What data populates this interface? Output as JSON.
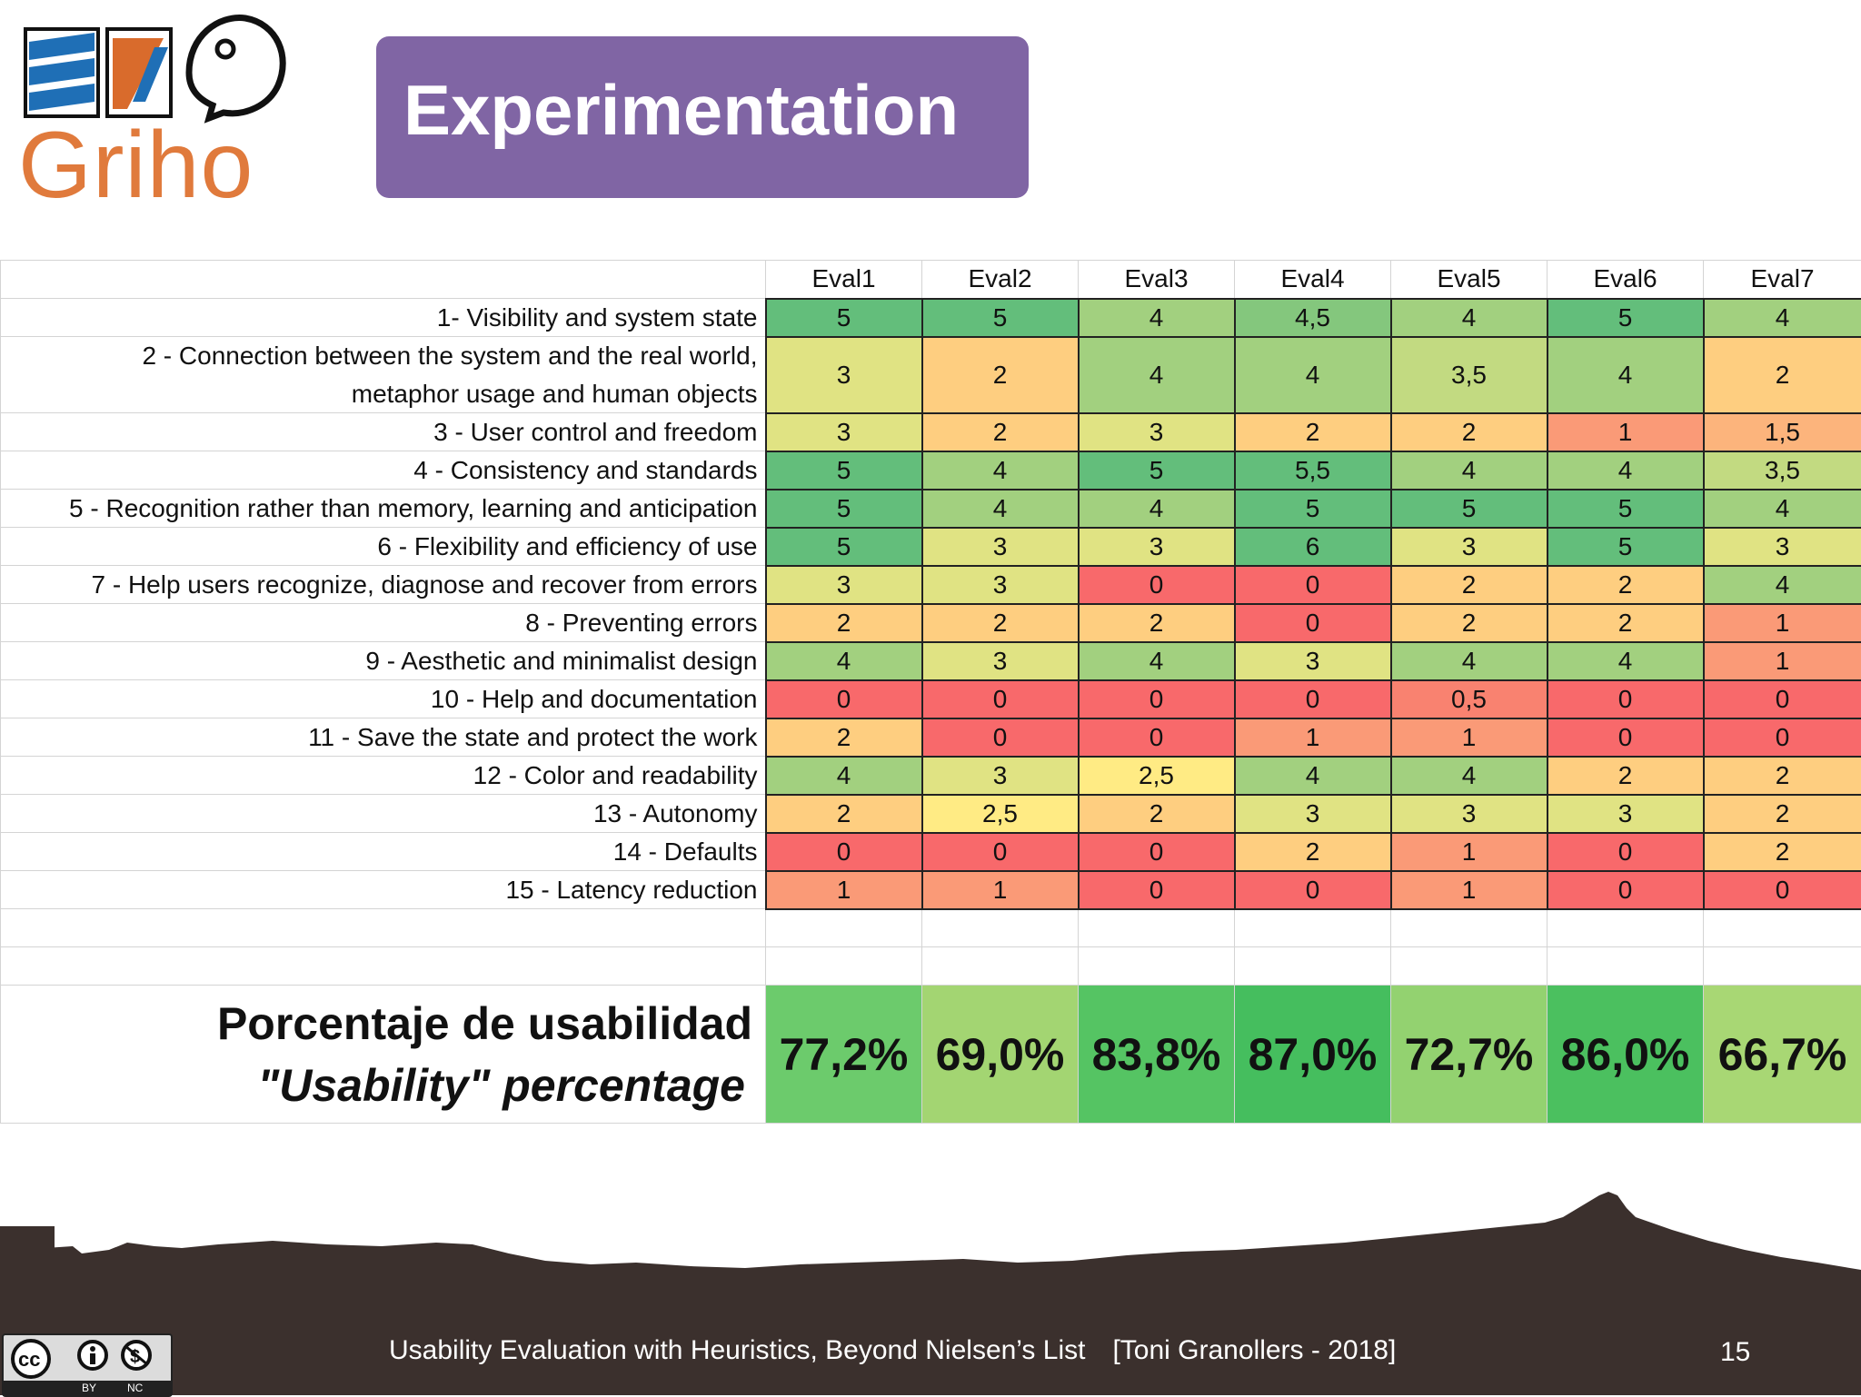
{
  "logo": {
    "wordmark": "Griho"
  },
  "title": "Experimentation",
  "table": {
    "headers": [
      "Eval1",
      "Eval2",
      "Eval3",
      "Eval4",
      "Eval5",
      "Eval6",
      "Eval7"
    ],
    "rows": [
      {
        "label": "1- Visibility and system state",
        "values": [
          "5",
          "5",
          "4",
          "4,5",
          "4",
          "5",
          "4"
        ],
        "colors": [
          "#63BE7B",
          "#63BE7B",
          "#A2D07F",
          "#84C77D",
          "#A2D07F",
          "#63BE7B",
          "#A2D07F"
        ]
      },
      {
        "label": "2 - Connection between the system and the real world,",
        "label2": "metaphor usage and human objects",
        "values": [
          "3",
          "2",
          "4",
          "4",
          "3,5",
          "4",
          "2"
        ],
        "colors": [
          "#E0E383",
          "#FECE80",
          "#A2D07F",
          "#A2D07F",
          "#C2DA81",
          "#A2D07F",
          "#FECE80"
        ]
      },
      {
        "label": "3 - User control and freedom",
        "values": [
          "3",
          "2",
          "3",
          "2",
          "2",
          "1",
          "1,5"
        ],
        "colors": [
          "#E0E383",
          "#FECE80",
          "#E0E383",
          "#FECE80",
          "#FECE80",
          "#FA9A77",
          "#FCB47C"
        ]
      },
      {
        "label": "4 - Consistency and standards",
        "values": [
          "5",
          "4",
          "5",
          "5,5",
          "4",
          "4",
          "3,5"
        ],
        "colors": [
          "#63BE7B",
          "#A2D07F",
          "#63BE7B",
          "#63BE7B",
          "#A2D07F",
          "#A2D07F",
          "#C2DA81"
        ]
      },
      {
        "label": "5 - Recognition rather than memory, learning and anticipation",
        "values": [
          "5",
          "4",
          "4",
          "5",
          "5",
          "5",
          "4"
        ],
        "colors": [
          "#63BE7B",
          "#A2D07F",
          "#A2D07F",
          "#63BE7B",
          "#63BE7B",
          "#63BE7B",
          "#A2D07F"
        ]
      },
      {
        "label": "6 - Flexibility and efficiency of use",
        "values": [
          "5",
          "3",
          "3",
          "6",
          "3",
          "5",
          "3"
        ],
        "colors": [
          "#63BE7B",
          "#E0E383",
          "#E0E383",
          "#63BE7B",
          "#E0E383",
          "#63BE7B",
          "#E0E383"
        ]
      },
      {
        "label": "7 - Help users recognize, diagnose and recover from errors",
        "values": [
          "3",
          "3",
          "0",
          "0",
          "2",
          "2",
          "4"
        ],
        "colors": [
          "#E0E383",
          "#E0E383",
          "#F8696B",
          "#F8696B",
          "#FECE80",
          "#FECE80",
          "#A2D07F"
        ]
      },
      {
        "label": "8 - Preventing errors",
        "values": [
          "2",
          "2",
          "2",
          "0",
          "2",
          "2",
          "1"
        ],
        "colors": [
          "#FECE80",
          "#FECE80",
          "#FECE80",
          "#F8696B",
          "#FECE80",
          "#FECE80",
          "#FA9A77"
        ]
      },
      {
        "label": "9 - Aesthetic and minimalist design",
        "values": [
          "4",
          "3",
          "4",
          "3",
          "4",
          "4",
          "1"
        ],
        "colors": [
          "#A2D07F",
          "#E0E383",
          "#A2D07F",
          "#E0E383",
          "#A2D07F",
          "#A2D07F",
          "#FA9A77"
        ]
      },
      {
        "label": "10 - Help and documentation",
        "values": [
          "0",
          "0",
          "0",
          "0",
          "0,5",
          "0",
          "0"
        ],
        "colors": [
          "#F8696B",
          "#F8696B",
          "#F8696B",
          "#F8696B",
          "#F98270",
          "#F8696B",
          "#F8696B"
        ]
      },
      {
        "label": "11 - Save the state and protect the work",
        "values": [
          "2",
          "0",
          "0",
          "1",
          "1",
          "0",
          "0"
        ],
        "colors": [
          "#FECE80",
          "#F8696B",
          "#F8696B",
          "#FA9A77",
          "#FA9A77",
          "#F8696B",
          "#F8696B"
        ]
      },
      {
        "label": "12 - Color and readability",
        "values": [
          "4",
          "3",
          "2,5",
          "4",
          "4",
          "2",
          "2"
        ],
        "colors": [
          "#A2D07F",
          "#E0E383",
          "#FFEB84",
          "#A2D07F",
          "#A2D07F",
          "#FECE80",
          "#FECE80"
        ]
      },
      {
        "label": "13 - Autonomy",
        "values": [
          "2",
          "2,5",
          "2",
          "3",
          "3",
          "3",
          "2"
        ],
        "colors": [
          "#FECE80",
          "#FFEB84",
          "#FECE80",
          "#E0E383",
          "#E0E383",
          "#E0E383",
          "#FECE80"
        ]
      },
      {
        "label": "14 - Defaults",
        "values": [
          "0",
          "0",
          "0",
          "2",
          "1",
          "0",
          "2"
        ],
        "colors": [
          "#F8696B",
          "#F8696B",
          "#F8696B",
          "#FECE80",
          "#FA9A77",
          "#F8696B",
          "#FECE80"
        ]
      },
      {
        "label": "15 - Latency reduction",
        "values": [
          "1",
          "1",
          "0",
          "0",
          "1",
          "0",
          "0"
        ],
        "colors": [
          "#FA9A77",
          "#FA9A77",
          "#F8696B",
          "#F8696B",
          "#FA9A77",
          "#F8696B",
          "#F8696B"
        ]
      }
    ],
    "percentage_label_es": "Porcentaje de usabilidad",
    "percentage_label_en": "\"Usability\" percentage",
    "percentages": [
      "77,2%",
      "69,0%",
      "83,8%",
      "87,0%",
      "72,7%",
      "86,0%",
      "66,7%"
    ],
    "percentage_colors": [
      "#6CCB6C",
      "#A3D572",
      "#55C463",
      "#45BE5E",
      "#93D270",
      "#4BC05F",
      "#A8D774"
    ]
  },
  "footer": {
    "text": "Usability Evaluation with Heuristics, Beyond Nielsen’s List",
    "author": "[Toni Granollers - 2018]",
    "page_number": "15"
  },
  "license": {
    "by": "BY",
    "nc": "NC"
  }
}
